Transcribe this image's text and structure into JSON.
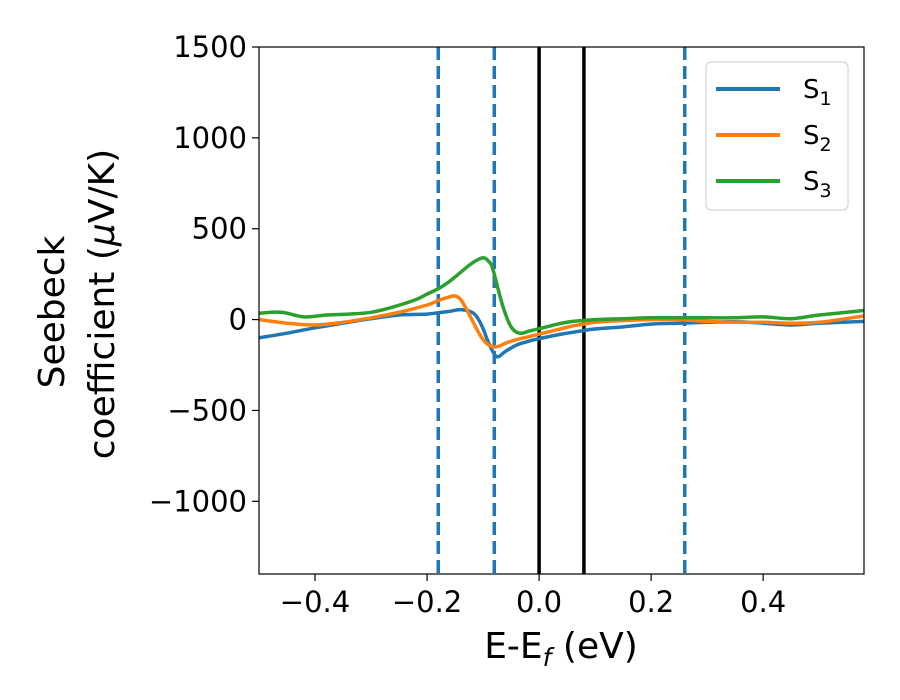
{
  "chart_data": {
    "type": "line",
    "title": "",
    "xlabel": {
      "base": "E-E",
      "sub": "f",
      "unit": " (eV)"
    },
    "ylabel": {
      "line1": "Seebeck",
      "line2_prefix": "coefficient  (",
      "mu": "μ",
      "line2_suffix": "V/K)"
    },
    "xlim": [
      -0.5,
      0.58
    ],
    "ylim": [
      -1400,
      1500
    ],
    "xticks": [
      -0.4,
      -0.2,
      0.0,
      0.2,
      0.4
    ],
    "xtick_labels": [
      "−0.4",
      "−0.2",
      "0.0",
      "0.2",
      "0.4"
    ],
    "yticks": [
      -1000,
      -500,
      0,
      500,
      1000,
      1500
    ],
    "ytick_labels": [
      "−1000",
      "−500",
      "0",
      "500",
      "1000",
      "1500"
    ],
    "grid": false,
    "legend_position": "top-right",
    "vlines_dashed": {
      "x": [
        -0.18,
        -0.08,
        0.26
      ],
      "color": "#1f77b4"
    },
    "vlines_solid": {
      "x": [
        0.0,
        0.08
      ],
      "color": "#000000"
    },
    "series": [
      {
        "name": "S1",
        "label_base": "S",
        "label_sub": "1",
        "color": "#1f77b4",
        "x": [
          -0.5,
          -0.45,
          -0.4,
          -0.35,
          -0.3,
          -0.25,
          -0.2,
          -0.18,
          -0.16,
          -0.14,
          -0.12,
          -0.11,
          -0.1,
          -0.09,
          -0.08,
          -0.075,
          -0.07,
          -0.06,
          -0.04,
          -0.02,
          0.0,
          0.02,
          0.04,
          0.06,
          0.08,
          0.1,
          0.15,
          0.2,
          0.25,
          0.3,
          0.35,
          0.4,
          0.45,
          0.5,
          0.58
        ],
        "y": [
          -100,
          -75,
          -45,
          -20,
          5,
          25,
          30,
          38,
          45,
          55,
          40,
          10,
          -50,
          -130,
          -190,
          -205,
          -200,
          -175,
          -140,
          -120,
          -105,
          -92,
          -80,
          -70,
          -60,
          -52,
          -40,
          -25,
          -20,
          -15,
          -12,
          -20,
          -30,
          -20,
          -10
        ]
      },
      {
        "name": "S2",
        "label_base": "S",
        "label_sub": "2",
        "color": "#ff7f0e",
        "x": [
          -0.5,
          -0.45,
          -0.4,
          -0.35,
          -0.3,
          -0.25,
          -0.2,
          -0.18,
          -0.16,
          -0.15,
          -0.14,
          -0.13,
          -0.12,
          -0.11,
          -0.1,
          -0.09,
          -0.08,
          -0.07,
          -0.06,
          -0.04,
          -0.02,
          0.0,
          0.02,
          0.04,
          0.06,
          0.08,
          0.1,
          0.15,
          0.2,
          0.25,
          0.3,
          0.35,
          0.4,
          0.45,
          0.5,
          0.58
        ],
        "y": [
          0,
          -20,
          -30,
          -15,
          10,
          40,
          80,
          105,
          125,
          130,
          110,
          60,
          0,
          -60,
          -110,
          -140,
          -150,
          -145,
          -130,
          -110,
          -95,
          -80,
          -65,
          -50,
          -35,
          -25,
          -15,
          -5,
          0,
          0,
          -10,
          -15,
          -15,
          -20,
          -15,
          20
        ]
      },
      {
        "name": "S3",
        "label_base": "S",
        "label_sub": "3",
        "color": "#2ca02c",
        "x": [
          -0.5,
          -0.46,
          -0.42,
          -0.38,
          -0.34,
          -0.3,
          -0.26,
          -0.22,
          -0.2,
          -0.18,
          -0.16,
          -0.14,
          -0.12,
          -0.1,
          -0.09,
          -0.085,
          -0.08,
          -0.07,
          -0.06,
          -0.05,
          -0.04,
          -0.03,
          -0.02,
          0.0,
          0.02,
          0.04,
          0.06,
          0.08,
          0.1,
          0.15,
          0.2,
          0.25,
          0.3,
          0.35,
          0.4,
          0.45,
          0.5,
          0.58
        ],
        "y": [
          35,
          40,
          15,
          25,
          30,
          40,
          70,
          110,
          140,
          170,
          210,
          260,
          310,
          340,
          320,
          300,
          250,
          130,
          30,
          -40,
          -70,
          -75,
          -65,
          -50,
          -35,
          -20,
          -10,
          -5,
          0,
          5,
          10,
          10,
          10,
          10,
          15,
          5,
          25,
          50
        ]
      }
    ]
  }
}
